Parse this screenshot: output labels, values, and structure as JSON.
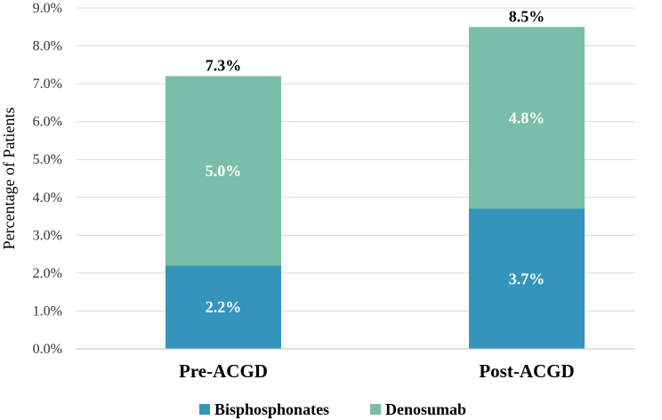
{
  "chart_data": {
    "type": "bar",
    "stacked": true,
    "categories": [
      "Pre-ACGD",
      "Post-ACGD"
    ],
    "series": [
      {
        "name": "Bisphosphonates",
        "values": [
          2.2,
          3.7
        ],
        "labels": [
          "2.2%",
          "3.7%"
        ],
        "color": "#3594bb"
      },
      {
        "name": "Denosumab",
        "values": [
          5.0,
          4.8
        ],
        "labels": [
          "5.0%",
          "4.8%"
        ],
        "color": "#79bea8"
      }
    ],
    "totals": [
      7.3,
      8.5
    ],
    "total_labels": [
      "7.3%",
      "8.5%"
    ],
    "ylabel": "Percentage of Patients",
    "ylim": [
      0,
      9
    ],
    "yticks": [
      0,
      1,
      2,
      3,
      4,
      5,
      6,
      7,
      8,
      9
    ],
    "ytick_labels": [
      "0.0%",
      "1.0%",
      "2.0%",
      "3.0%",
      "4.0%",
      "5.0%",
      "6.0%",
      "7.0%",
      "8.0%",
      "9.0%"
    ],
    "grid": true,
    "legend_position": "bottom",
    "gridline_color": "#d9d9d9"
  }
}
